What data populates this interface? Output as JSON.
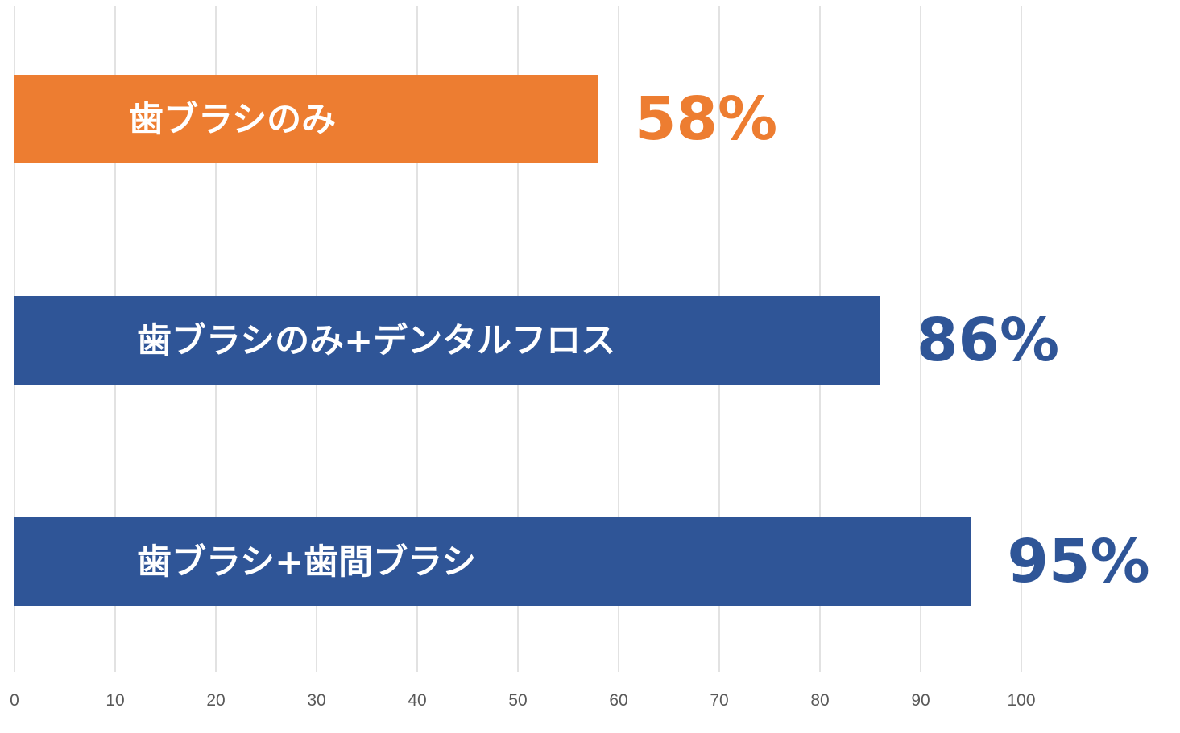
{
  "chart_data": {
    "type": "bar",
    "orientation": "horizontal",
    "categories": [
      "歯ブラシのみ",
      "歯ブラシのみ+デンタルフロス",
      "歯ブラシ+歯間ブラシ"
    ],
    "values": [
      58,
      86,
      95
    ],
    "value_labels": [
      "58%",
      "86%",
      "95%"
    ],
    "bar_colors": [
      "#ED7D31",
      "#2F5597",
      "#2F5597"
    ],
    "xlim": [
      0,
      100
    ],
    "x_ticks": [
      0,
      10,
      20,
      30,
      40,
      50,
      60,
      70,
      80,
      90,
      100
    ],
    "x_tick_labels": [
      "0",
      "10",
      "20",
      "30",
      "40",
      "50",
      "60",
      "70",
      "80",
      "90",
      "100"
    ],
    "grid": true,
    "legend": "none",
    "title": "",
    "xlabel": "",
    "ylabel": ""
  }
}
